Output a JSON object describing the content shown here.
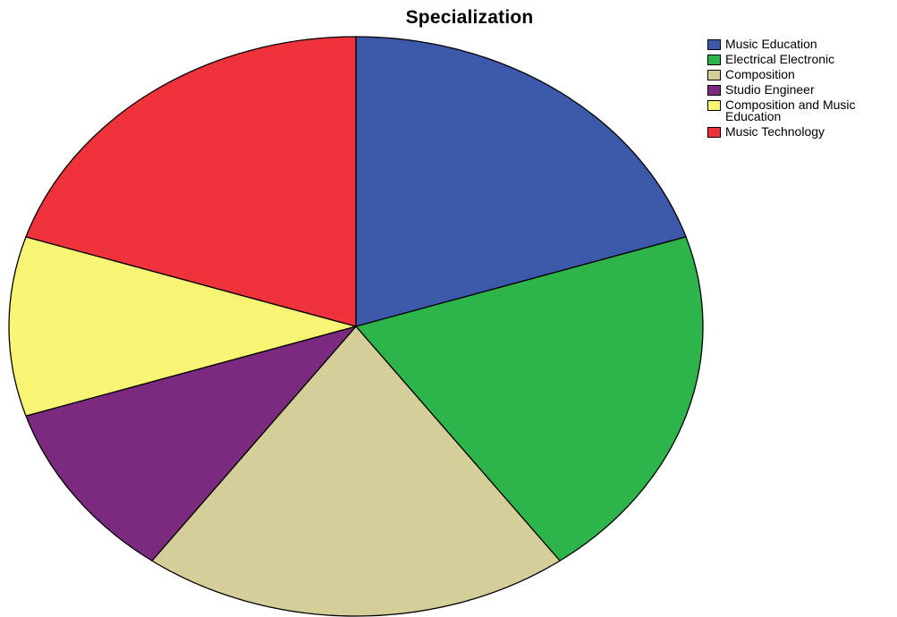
{
  "chart_data": {
    "type": "pie",
    "title": "Specialization",
    "legend_position": "top-right",
    "categories": [
      "Music Education",
      "Electrical Electronic",
      "Composition",
      "Studio Engineer",
      "Composition and Music Education",
      "Music Technology"
    ],
    "values": [
      20,
      20,
      20,
      10,
      10,
      20
    ],
    "colors": [
      "#3c58aa",
      "#2db44a",
      "#d4ce98",
      "#7b2a7f",
      "#f9f574",
      "#f0323a"
    ],
    "legend_labels": [
      [
        "Music Education"
      ],
      [
        "Electrical Electronic"
      ],
      [
        "Composition"
      ],
      [
        "Studio Engineer"
      ],
      [
        "Composition and Music",
        "Education"
      ],
      [
        "Music Technology"
      ]
    ]
  }
}
